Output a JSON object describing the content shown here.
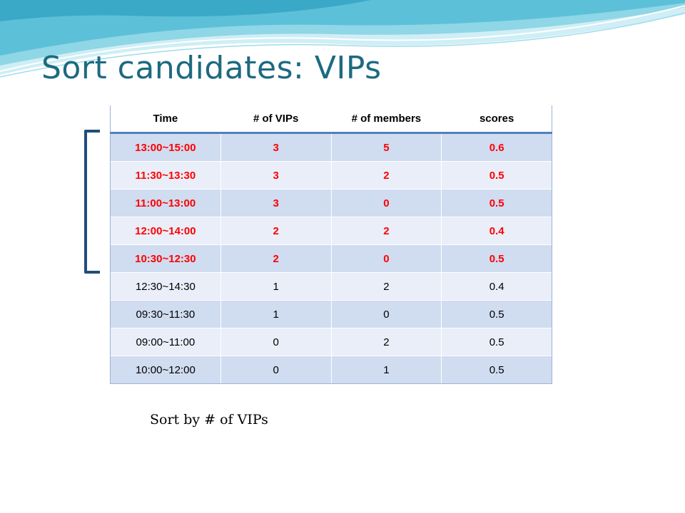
{
  "slide": {
    "title": "Sort candidates: VIPs",
    "caption": "Sort by # of VIPs",
    "colors": {
      "title": "#1d6a80",
      "highlight_text": "#ff0000",
      "header_rule": "#4f81bd",
      "bracket": "#1f4e79"
    }
  },
  "table": {
    "headers": [
      "Time",
      "# of VIPs",
      "# of members",
      "scores"
    ],
    "rows": [
      {
        "cells": [
          "13:00~15:00",
          "3",
          "5",
          "0.6"
        ],
        "highlighted": true
      },
      {
        "cells": [
          "11:30~13:30",
          "3",
          "2",
          "0.5"
        ],
        "highlighted": true
      },
      {
        "cells": [
          "11:00~13:00",
          "3",
          "0",
          "0.5"
        ],
        "highlighted": true
      },
      {
        "cells": [
          "12:00~14:00",
          "2",
          "2",
          "0.4"
        ],
        "highlighted": true
      },
      {
        "cells": [
          "10:30~12:30",
          "2",
          "0",
          "0.5"
        ],
        "highlighted": true
      },
      {
        "cells": [
          "12:30~14:30",
          "1",
          "2",
          "0.4"
        ],
        "highlighted": false
      },
      {
        "cells": [
          "09:30~11:30",
          "1",
          "0",
          "0.5"
        ],
        "highlighted": false
      },
      {
        "cells": [
          "09:00~11:00",
          "0",
          "2",
          "0.5"
        ],
        "highlighted": false
      },
      {
        "cells": [
          "10:00~12:00",
          "0",
          "1",
          "0.5"
        ],
        "highlighted": false
      }
    ]
  }
}
